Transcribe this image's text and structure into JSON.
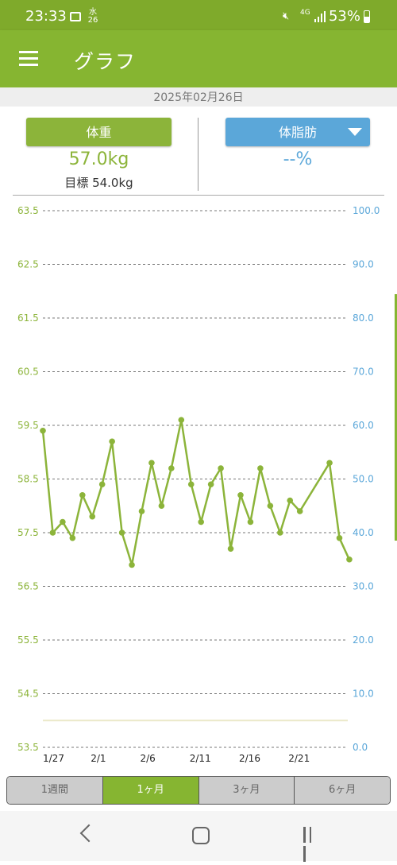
{
  "status_bar": {
    "time": "23:33",
    "date_char": "水",
    "date_num": "26",
    "network": "4G",
    "battery": "53%"
  },
  "app_bar": {
    "title": "グラフ"
  },
  "date_label": "2025年02月26日",
  "weight": {
    "button_label": "体重",
    "value": "57.0kg",
    "goal": "目標 54.0kg"
  },
  "body_fat": {
    "button_label": "体脂肪",
    "value": "--%"
  },
  "chart_data": {
    "type": "line",
    "left_axis": {
      "min": 53.5,
      "max": 63.5,
      "ticks": [
        "53.5",
        "54.5",
        "55.5",
        "56.5",
        "57.5",
        "58.5",
        "59.5",
        "60.5",
        "61.5",
        "62.5",
        "63.5"
      ],
      "color": "#8cb43a"
    },
    "right_axis": {
      "min": 0,
      "max": 100,
      "ticks": [
        "0.0",
        "10.0",
        "20.0",
        "30.0",
        "40.0",
        "50.0",
        "60.0",
        "70.0",
        "80.0",
        "90.0",
        "100.0"
      ],
      "color": "#5ba7d9"
    },
    "x_labels": [
      {
        "day": 0,
        "label": "1/27"
      },
      {
        "day": 5,
        "label": "2/1"
      },
      {
        "day": 10,
        "label": "2/6"
      },
      {
        "day": 15,
        "label": "2/11"
      },
      {
        "day": 20,
        "label": "2/16"
      },
      {
        "day": 25,
        "label": "2/21"
      }
    ],
    "x_range": [
      0,
      30
    ],
    "goal_line": 54.0,
    "grid": true,
    "series": [
      {
        "values": [
          {
            "day": 0,
            "v": 59.4
          },
          {
            "day": 1,
            "v": 57.5
          },
          {
            "day": 2,
            "v": 57.7
          },
          {
            "day": 3,
            "v": 57.4
          },
          {
            "day": 4,
            "v": 58.2
          },
          {
            "day": 5,
            "v": 57.8
          },
          {
            "day": 6,
            "v": 58.4
          },
          {
            "day": 7,
            "v": 59.2
          },
          {
            "day": 8,
            "v": 57.5
          },
          {
            "day": 9,
            "v": 56.9
          },
          {
            "day": 10,
            "v": 57.9
          },
          {
            "day": 11,
            "v": 58.8
          },
          {
            "day": 12,
            "v": 58.0
          },
          {
            "day": 13,
            "v": 58.7
          },
          {
            "day": 14,
            "v": 59.6
          },
          {
            "day": 15,
            "v": 58.4
          },
          {
            "day": 16,
            "v": 57.7
          },
          {
            "day": 17,
            "v": 58.4
          },
          {
            "day": 18,
            "v": 58.7
          },
          {
            "day": 19,
            "v": 57.2
          },
          {
            "day": 20,
            "v": 58.2
          },
          {
            "day": 21,
            "v": 57.7
          },
          {
            "day": 22,
            "v": 58.7
          },
          {
            "day": 23,
            "v": 58.0
          },
          {
            "day": 24,
            "v": 57.5
          },
          {
            "day": 25,
            "v": 58.1
          },
          {
            "day": 26,
            "v": 57.9
          },
          {
            "day": 29,
            "v": 58.8
          },
          {
            "day": 30,
            "v": 57.4
          },
          {
            "day": 31,
            "v": 57.0
          }
        ]
      }
    ]
  },
  "ranges": [
    "1週間",
    "1ヶ月",
    "3ヶ月",
    "6ヶ月"
  ],
  "active_range": "1ヶ月"
}
